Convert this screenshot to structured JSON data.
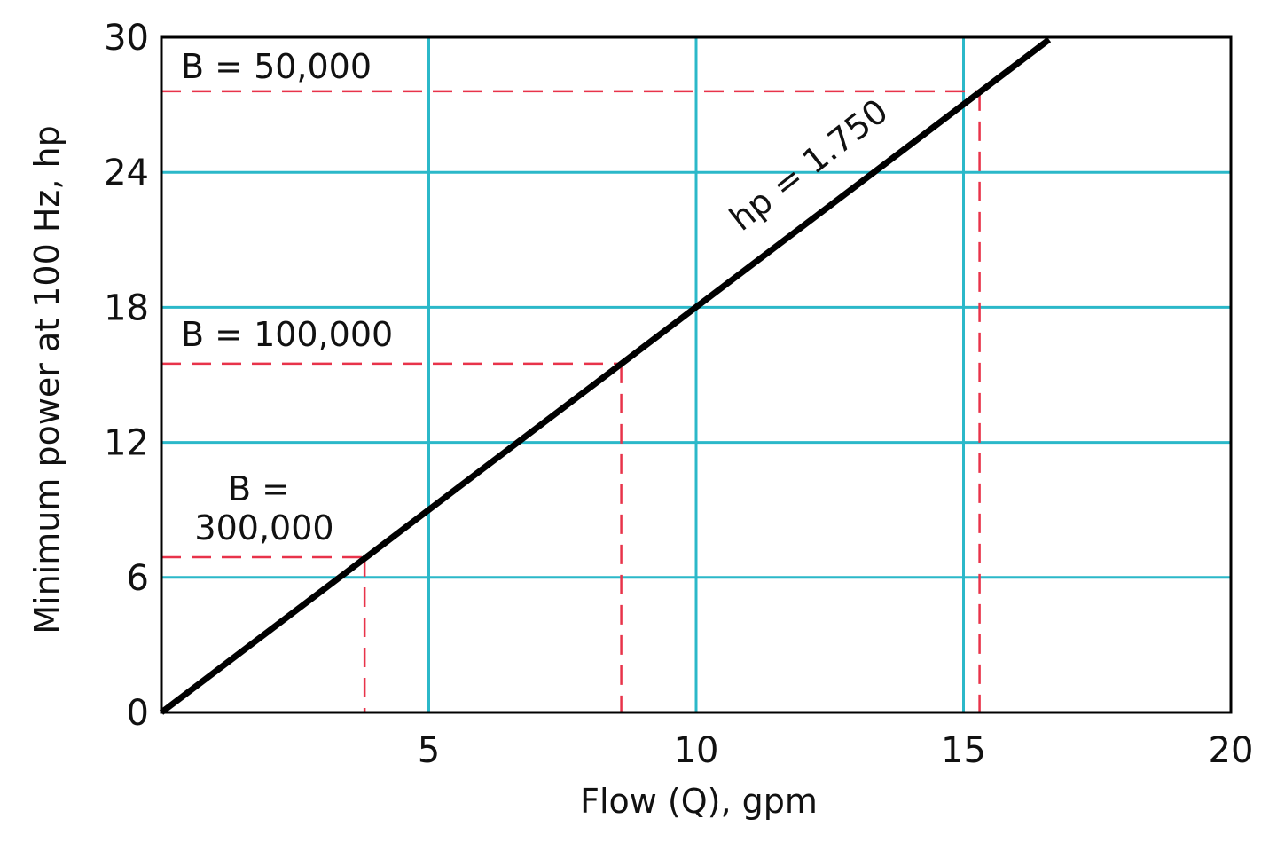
{
  "chart_data": {
    "type": "line",
    "title": "",
    "xlabel": "Flow (Q), gpm",
    "ylabel": "Minimum power at 100 Hz, hp",
    "xlim": [
      0,
      20
    ],
    "ylim": [
      0,
      30
    ],
    "x_ticks": [
      {
        "value": 5,
        "label": "5"
      },
      {
        "value": 10,
        "label": "10"
      },
      {
        "value": 15,
        "label": "15"
      },
      {
        "value": 20,
        "label": "20"
      }
    ],
    "y_ticks": [
      {
        "value": 0,
        "label": "0"
      },
      {
        "value": 6,
        "label": "6"
      },
      {
        "value": 12,
        "label": "12"
      },
      {
        "value": 18,
        "label": "18"
      },
      {
        "value": 24,
        "label": "24"
      },
      {
        "value": 30,
        "label": "30"
      }
    ],
    "grid": true,
    "series": [
      {
        "name": "hp = 1.750",
        "x": [
          0,
          16.6
        ],
        "y": [
          0,
          29.9
        ],
        "color": "#000000"
      }
    ],
    "reference_lines": [
      {
        "label": "B = 50,000",
        "x": 15.3,
        "y": 27.6
      },
      {
        "label": "B = 100,000",
        "x": 8.6,
        "y": 15.5
      },
      {
        "label": "B = 300,000",
        "x": 3.8,
        "y": 6.9
      }
    ],
    "colors": {
      "grid": "#2bb8c9",
      "reference": "#e8334a",
      "line": "#000000",
      "frame": "#000000"
    }
  }
}
